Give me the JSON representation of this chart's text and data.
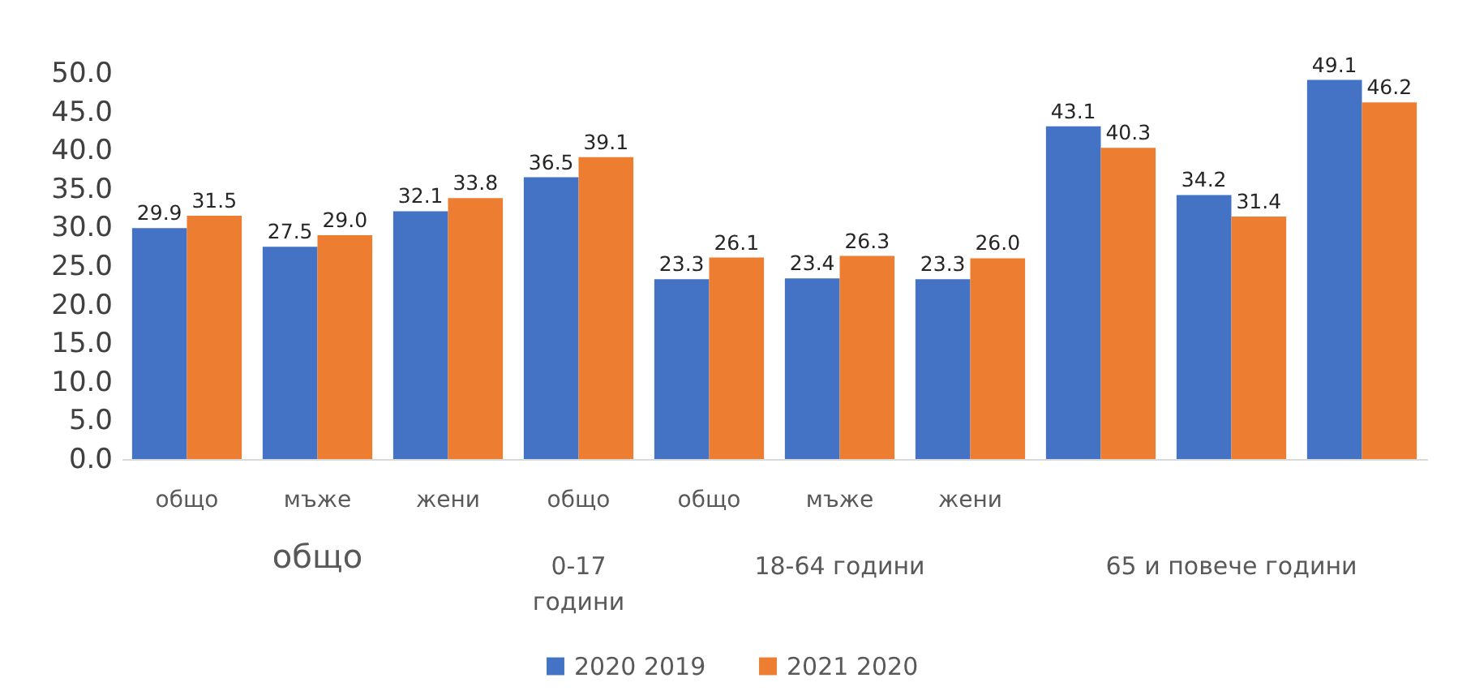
{
  "chart_data": {
    "type": "bar",
    "categories": [
      "общо",
      "мъже",
      "жени",
      "общо",
      "общо",
      "мъже",
      "жени",
      null,
      null,
      null
    ],
    "series": [
      {
        "name": "2020 2019",
        "color": "#4472c4",
        "values": [
          29.9,
          27.5,
          32.1,
          36.5,
          23.3,
          23.4,
          23.3,
          43.1,
          34.2,
          49.1
        ],
        "value_labels": [
          "29.9",
          "27.5",
          "32.1",
          "36.5",
          "23.3",
          "23.4",
          "23.3",
          "43.1",
          "34.2",
          "49.1"
        ]
      },
      {
        "name": "2021 2020",
        "color": "#ed7d31",
        "values": [
          31.5,
          29.0,
          33.8,
          39.1,
          26.1,
          26.3,
          26.0,
          40.3,
          31.4,
          46.2
        ],
        "value_labels": [
          "31.5",
          "29.0",
          "33.8",
          "39.1",
          "26.1",
          "26.3",
          "26.0",
          "40.3",
          "31.4",
          "46.2"
        ]
      }
    ],
    "annotations": [
      "общо",
      "0-17 години",
      "18-64 години",
      "65 и повече години"
    ],
    "ylim": [
      0,
      50
    ],
    "yticks": [
      {
        "value": 0,
        "label": "0.0"
      },
      {
        "value": 5,
        "label": "5.0"
      },
      {
        "value": 10,
        "label": "10.0"
      },
      {
        "value": 15,
        "label": "15.0"
      },
      {
        "value": 20,
        "label": "20.0"
      },
      {
        "value": 25,
        "label": "25.0"
      },
      {
        "value": 30,
        "label": "30.0"
      },
      {
        "value": 35,
        "label": "35.0"
      },
      {
        "value": 40,
        "label": "40.0"
      },
      {
        "value": 45,
        "label": "45.0"
      },
      {
        "value": 50,
        "label": "50.0"
      }
    ],
    "legend": "bottom",
    "grid": false
  }
}
